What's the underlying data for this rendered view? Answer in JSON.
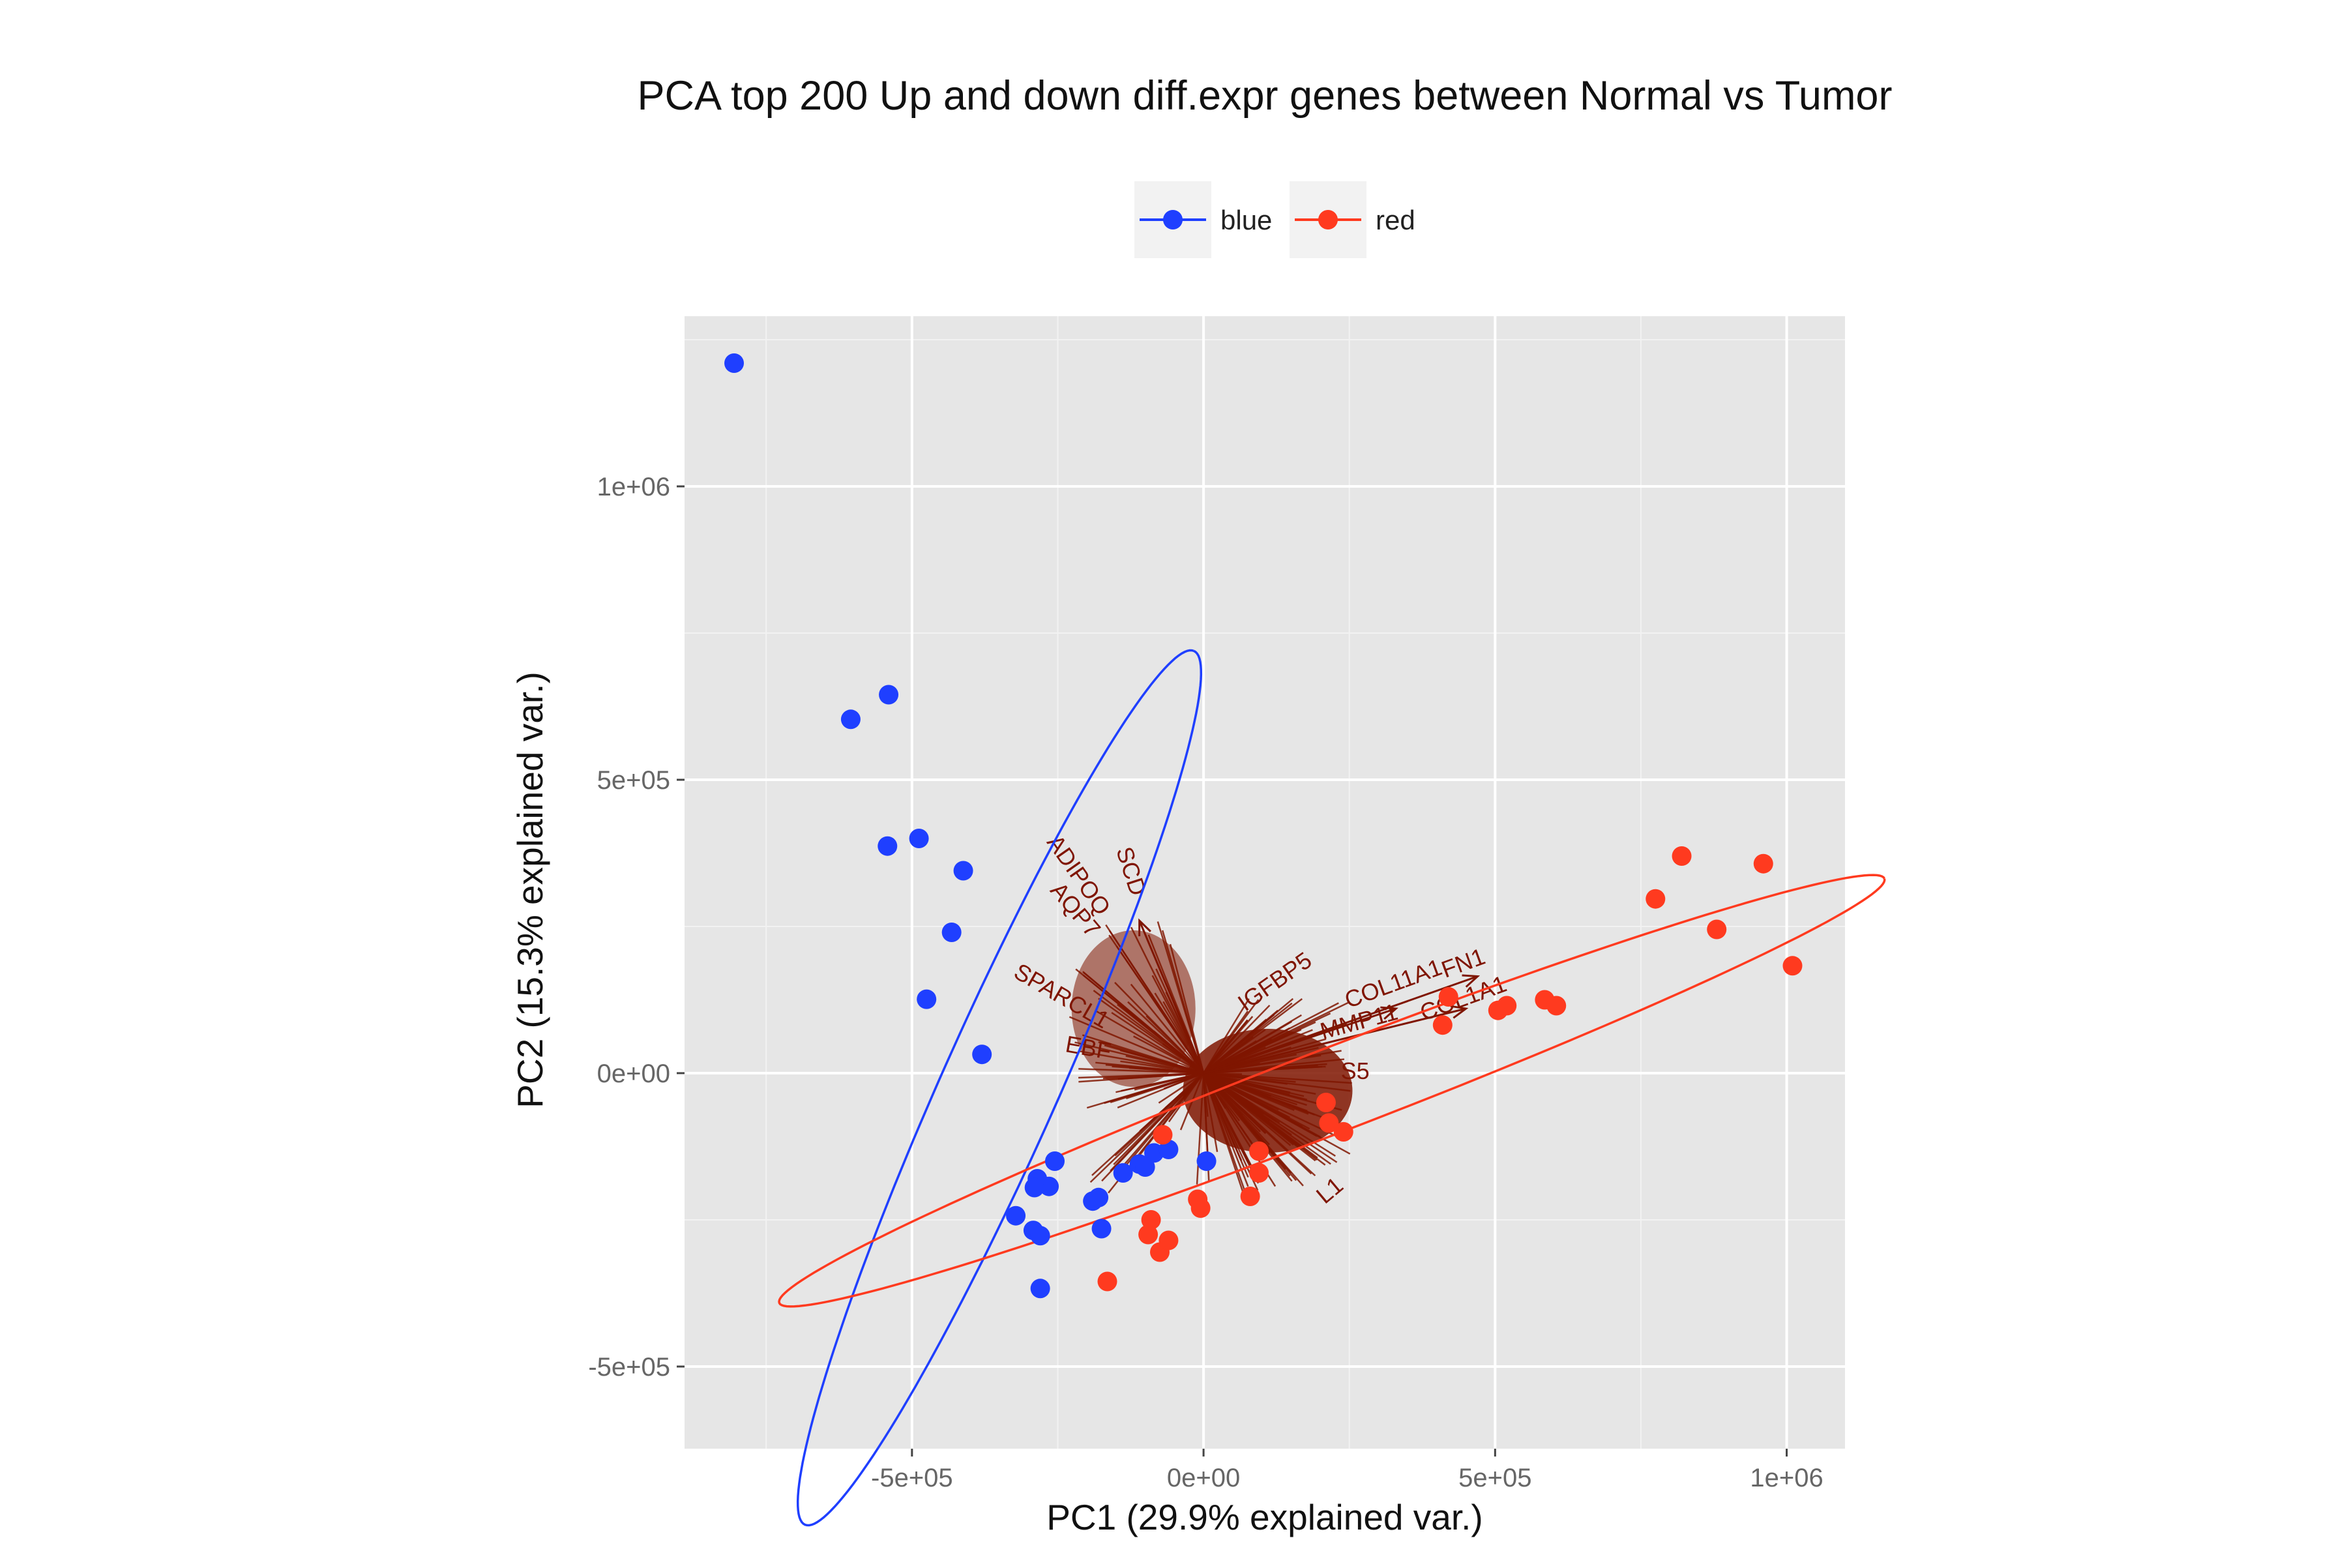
{
  "chart_data": {
    "type": "scatter",
    "title": "PCA top 200 Up and down diff.expr genes between Normal vs Tumor",
    "xlabel": "PC1 (29.9% explained var.)",
    "ylabel": "PC2 (15.3% explained var.)",
    "xlim": [
      -890000,
      1100000
    ],
    "ylim": [
      -640000,
      1290000
    ],
    "x_ticks": [
      {
        "value": -500000,
        "label": "-5e+05"
      },
      {
        "value": 0,
        "label": "0e+00"
      },
      {
        "value": 500000,
        "label": "5e+05"
      },
      {
        "value": 1000000,
        "label": "1e+06"
      }
    ],
    "y_ticks": [
      {
        "value": -500000,
        "label": "-5e+05"
      },
      {
        "value": 0,
        "label": "0e+00"
      },
      {
        "value": 500000,
        "label": "5e+05"
      },
      {
        "value": 1000000,
        "label": "1e+06"
      }
    ],
    "grid": true,
    "legend_position": "top",
    "series": [
      {
        "name": "blue",
        "color": "#1f3fff",
        "points": [
          [
            -805000,
            1210000
          ],
          [
            -605000,
            603000
          ],
          [
            -540000,
            645000
          ],
          [
            -542000,
            387000
          ],
          [
            -488000,
            400000
          ],
          [
            -412000,
            345000
          ],
          [
            -432000,
            240000
          ],
          [
            -475000,
            126000
          ],
          [
            -380000,
            32000
          ],
          [
            -255000,
            -150000
          ],
          [
            -285000,
            -180000
          ],
          [
            -265000,
            -193000
          ],
          [
            -290000,
            -195000
          ],
          [
            -322000,
            -243000
          ],
          [
            -292000,
            -268000
          ],
          [
            -280000,
            -277000
          ],
          [
            -280000,
            -367000
          ],
          [
            -190000,
            -218000
          ],
          [
            -180000,
            -212000
          ],
          [
            -175000,
            -265000
          ],
          [
            -138000,
            -170000
          ],
          [
            -110000,
            -155000
          ],
          [
            -85000,
            -136000
          ],
          [
            -60000,
            -130000
          ],
          [
            -100000,
            -160000
          ],
          [
            5000,
            -150000
          ]
        ],
        "ellipse": {
          "cx": -350000,
          "cy": -25000,
          "rx": 820000,
          "ry": 100000,
          "angle_deg": 66
        }
      },
      {
        "name": "red",
        "color": "#ff3a1f",
        "points": [
          [
            -165000,
            -355000
          ],
          [
            -95000,
            -275000
          ],
          [
            -75000,
            -305000
          ],
          [
            -60000,
            -285000
          ],
          [
            -90000,
            -250000
          ],
          [
            -10000,
            -215000
          ],
          [
            -5000,
            -230000
          ],
          [
            -70000,
            -105000
          ],
          [
            80000,
            -210000
          ],
          [
            95000,
            -170000
          ],
          [
            95000,
            -133000
          ],
          [
            210000,
            -50000
          ],
          [
            215000,
            -85000
          ],
          [
            240000,
            -100000
          ],
          [
            410000,
            82000
          ],
          [
            420000,
            130000
          ],
          [
            505000,
            107000
          ],
          [
            520000,
            115000
          ],
          [
            585000,
            125000
          ],
          [
            605000,
            115000
          ],
          [
            775000,
            297000
          ],
          [
            820000,
            370000
          ],
          [
            880000,
            245000
          ],
          [
            960000,
            357000
          ],
          [
            1010000,
            183000
          ]
        ],
        "ellipse": {
          "cx": 220000,
          "cy": -30000,
          "rx": 1015000,
          "ry": 72000,
          "angle_deg": 21
        }
      }
    ],
    "loadings": {
      "color": "#7f1500",
      "labels": [
        {
          "text": "SCD",
          "x": -137000,
          "y": 340000,
          "rotation": 72
        },
        {
          "text": "ADIPOQ",
          "x": -225000,
          "y": 330000,
          "rotation": 55
        },
        {
          "text": "AQP7",
          "x": -230000,
          "y": 270000,
          "rotation": 50
        },
        {
          "text": "SPARCL1",
          "x": -250000,
          "y": 120000,
          "rotation": 30
        },
        {
          "text": "EBF",
          "x": -200000,
          "y": 30000,
          "rotation": 10
        },
        {
          "text": "IGFBP5",
          "x": 130000,
          "y": 145000,
          "rotation": -35
        },
        {
          "text": "COL11A1",
          "x": 330000,
          "y": 140000,
          "rotation": -20
        },
        {
          "text": "FN1",
          "x": 450000,
          "y": 175000,
          "rotation": -20
        },
        {
          "text": "COL1A1",
          "x": 450000,
          "y": 115000,
          "rotation": -20
        },
        {
          "text": "MMP11",
          "x": 270000,
          "y": 75000,
          "rotation": -15
        },
        {
          "text": "L1",
          "x": 225000,
          "y": -210000,
          "rotation": -40
        },
        {
          "text": "S5",
          "x": 260000,
          "y": -10000,
          "rotation": 0
        }
      ]
    }
  }
}
